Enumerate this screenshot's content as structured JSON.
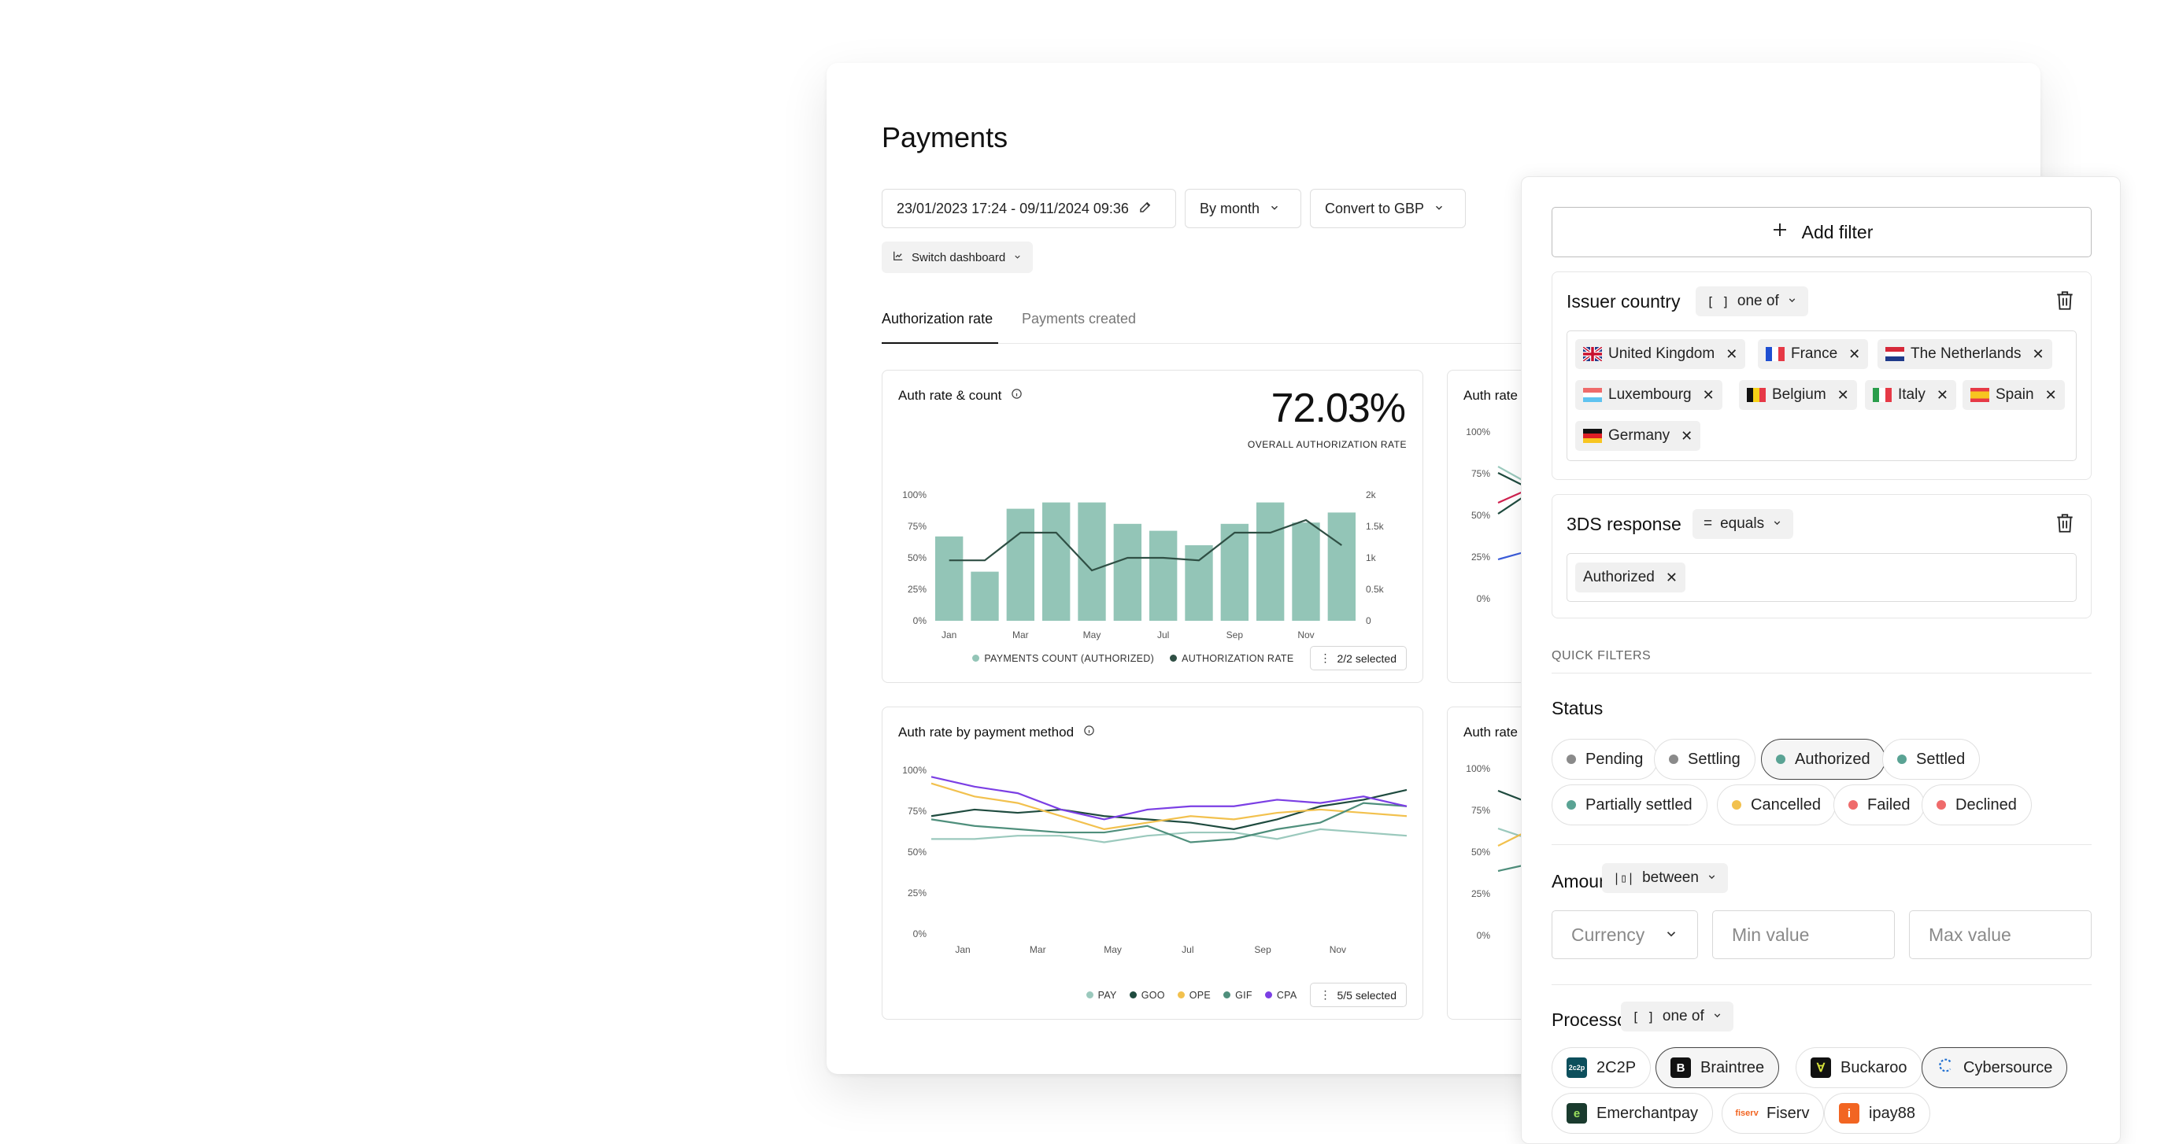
{
  "page": {
    "title": "Payments"
  },
  "controls": {
    "date_range": "23/01/2023 17:24 - 09/11/2024 09:36",
    "group_by": "By month",
    "convert": "Convert to GBP",
    "switch_dashboard": "Switch dashboard"
  },
  "tabs": [
    {
      "label": "Authorization rate",
      "active": true
    },
    {
      "label": "Payments created",
      "active": false
    }
  ],
  "cards": {
    "auth_count": {
      "title": "Auth rate & count",
      "big_value": "72.03%",
      "big_caption": "OVERALL AUTHORIZATION RATE",
      "legend": [
        "PAYMENTS COUNT (AUTHORIZED)",
        "AUTHORIZATION RATE"
      ],
      "selected": "2/2 selected"
    },
    "auth_method": {
      "title": "Auth rate by payment method",
      "legend": [
        "PAY",
        "GOO",
        "OPE",
        "GIF",
        "CPA"
      ],
      "selected": "5/5 selected"
    },
    "peek_1": {
      "title": "Auth rate"
    },
    "peek_2": {
      "title": "Auth rate"
    }
  },
  "chart_data": [
    {
      "type": "bar",
      "title": "Auth rate & count",
      "categories": [
        "Jan",
        "Feb",
        "Mar",
        "Apr",
        "May",
        "Jun",
        "Jul",
        "Aug",
        "Sep",
        "Oct",
        "Nov",
        "Dec"
      ],
      "x_tick_labels": [
        "Jan",
        "Mar",
        "May",
        "Jul",
        "Sep",
        "Nov"
      ],
      "left_axis": {
        "ticks": [
          "100%",
          "75%",
          "50%",
          "25%",
          "0%"
        ],
        "ylim": [
          0,
          100
        ]
      },
      "right_axis": {
        "ticks": [
          "2k",
          "1.5k",
          "1k",
          "0.5k",
          "0"
        ],
        "ylim": [
          0,
          2000
        ]
      },
      "series": [
        {
          "name": "PAYMENTS COUNT (AUTHORIZED)",
          "type": "bar",
          "axis": "right",
          "color": "#93c5b7",
          "values": [
            1340,
            780,
            1780,
            1880,
            1880,
            1540,
            1430,
            1200,
            1540,
            1880,
            1560,
            1720
          ]
        },
        {
          "name": "AUTHORIZATION RATE",
          "type": "line",
          "axis": "left",
          "color": "#2f4f44",
          "values": [
            48,
            48,
            70,
            70,
            40,
            50,
            50,
            48,
            70,
            70,
            80,
            60
          ]
        }
      ]
    },
    {
      "type": "line",
      "title": "Auth rate by payment method",
      "categories": [
        "Jan",
        "Feb",
        "Mar",
        "Apr",
        "May",
        "Jun",
        "Jul",
        "Aug",
        "Sep",
        "Oct",
        "Nov",
        "Dec"
      ],
      "x_tick_labels": [
        "Jan",
        "Mar",
        "May",
        "Jul",
        "Sep",
        "Nov"
      ],
      "y_ticks": [
        "100%",
        "75%",
        "50%",
        "25%",
        "0%"
      ],
      "ylim": [
        0,
        100
      ],
      "series": [
        {
          "name": "PAY",
          "color": "#9bc9bd",
          "values": [
            58,
            58,
            60,
            60,
            56,
            60,
            62,
            62,
            58,
            64,
            62,
            60
          ]
        },
        {
          "name": "GOO",
          "color": "#1f4b3f",
          "values": [
            72,
            76,
            74,
            76,
            72,
            70,
            68,
            64,
            70,
            78,
            82,
            88
          ]
        },
        {
          "name": "OPE",
          "color": "#f2c14e",
          "values": [
            92,
            84,
            80,
            72,
            64,
            68,
            72,
            70,
            74,
            76,
            74,
            72
          ]
        },
        {
          "name": "GIF",
          "color": "#4f8f7c",
          "values": [
            70,
            66,
            64,
            62,
            62,
            66,
            56,
            58,
            64,
            68,
            80,
            78
          ]
        },
        {
          "name": "CPA",
          "color": "#7b3fe4",
          "values": [
            96,
            90,
            86,
            76,
            70,
            76,
            78,
            78,
            82,
            80,
            84,
            78
          ]
        }
      ]
    }
  ],
  "peek_ticks": [
    "100%",
    "75%",
    "50%",
    "25%",
    "0%"
  ],
  "filter_panel": {
    "add_filter": "Add filter",
    "issuer_country": {
      "label": "Issuer country",
      "operator": "one of",
      "values": [
        "United Kingdom",
        "France",
        "The Netherlands",
        "Luxembourg",
        "Belgium",
        "Italy",
        "Spain",
        "Germany"
      ]
    },
    "tds_response": {
      "label": "3DS response",
      "operator": "equals",
      "values": [
        "Authorized"
      ]
    },
    "quick_filters_label": "QUICK FILTERS",
    "status": {
      "label": "Status",
      "options": [
        {
          "label": "Pending",
          "color": "#8a8a8a",
          "selected": false
        },
        {
          "label": "Settling",
          "color": "#8a8a8a",
          "selected": false
        },
        {
          "label": "Authorized",
          "color": "#5aa394",
          "selected": true
        },
        {
          "label": "Settled",
          "color": "#5aa394",
          "selected": false
        },
        {
          "label": "Partially settled",
          "color": "#5aa394",
          "selected": false
        },
        {
          "label": "Cancelled",
          "color": "#f2c14e",
          "selected": false
        },
        {
          "label": "Failed",
          "color": "#ef6b6b",
          "selected": false
        },
        {
          "label": "Declined",
          "color": "#ef6b6b",
          "selected": false
        }
      ]
    },
    "amount": {
      "label": "Amount",
      "operator": "between",
      "currency_placeholder": "Currency",
      "min_placeholder": "Min value",
      "max_placeholder": "Max value"
    },
    "processor": {
      "label": "Processor",
      "operator": "one of",
      "options": [
        {
          "label": "2C2P",
          "selected": false
        },
        {
          "label": "Braintree",
          "selected": true
        },
        {
          "label": "Buckaroo",
          "selected": false
        },
        {
          "label": "Cybersource",
          "selected": true
        },
        {
          "label": "Emerchantpay",
          "selected": false
        },
        {
          "label": "Fiserv",
          "selected": false
        },
        {
          "label": "ipay88",
          "selected": false
        }
      ]
    }
  }
}
